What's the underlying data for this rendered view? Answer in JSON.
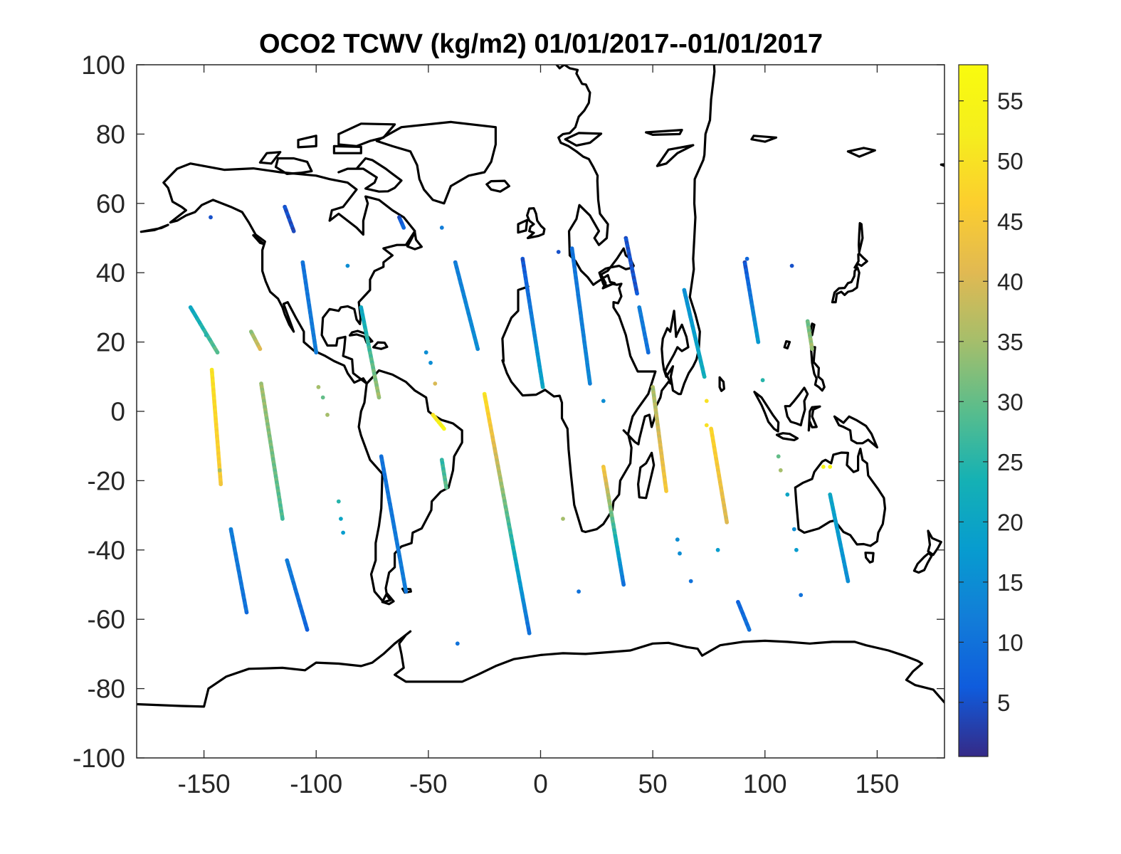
{
  "chart_data": {
    "type": "scatter",
    "title": "OCO2 TCWV (kg/m2) 01/01/2017--01/01/2017",
    "xlabel": "",
    "ylabel": "",
    "xlim": [
      -180,
      180
    ],
    "ylim": [
      -100,
      100
    ],
    "x_ticks": [
      -150,
      -100,
      -50,
      0,
      50,
      100,
      150
    ],
    "y_ticks": [
      100,
      80,
      60,
      40,
      20,
      0,
      -20,
      -40,
      -60,
      -80,
      -100
    ],
    "grid": false,
    "background_map": "world coastlines",
    "colorbar": {
      "location": "right",
      "colormap": "parula",
      "clim": [
        0.5,
        58
      ],
      "ticks": [
        55,
        50,
        45,
        40,
        35,
        30,
        25,
        20,
        15,
        10,
        5
      ]
    },
    "tracks": [
      {
        "x": [
          -156,
          -144
        ],
        "y": [
          30,
          17
        ],
        "values": [
          20,
          30
        ]
      },
      {
        "x": [
          -146.5,
          -142.5
        ],
        "y": [
          12,
          -21
        ],
        "values": [
          50,
          45
        ]
      },
      {
        "x": [
          -138,
          -131
        ],
        "y": [
          -34,
          -58
        ],
        "values": [
          12,
          10
        ]
      },
      {
        "x": [
          -129,
          -125
        ],
        "y": [
          23,
          18
        ],
        "values": [
          33,
          40
        ]
      },
      {
        "x": [
          -124.5,
          -115
        ],
        "y": [
          8,
          -31
        ],
        "values": [
          35,
          28
        ]
      },
      {
        "x": [
          -113,
          -104
        ],
        "y": [
          -43,
          -63
        ],
        "values": [
          12,
          8
        ]
      },
      {
        "x": [
          -114,
          -110
        ],
        "y": [
          59,
          52
        ],
        "values": [
          5,
          4
        ]
      },
      {
        "x": [
          -106,
          -100
        ],
        "y": [
          43,
          17
        ],
        "values": [
          10,
          12
        ]
      },
      {
        "x": [
          -80,
          -72
        ],
        "y": [
          30,
          4
        ],
        "values": [
          20,
          35
        ]
      },
      {
        "x": [
          -71,
          -60
        ],
        "y": [
          -13,
          -52
        ],
        "values": [
          10,
          12
        ]
      },
      {
        "x": [
          -63,
          -61
        ],
        "y": [
          56,
          53
        ],
        "values": [
          5,
          8
        ]
      },
      {
        "x": [
          -38,
          -28
        ],
        "y": [
          43,
          18
        ],
        "values": [
          12,
          15
        ]
      },
      {
        "x": [
          -48,
          -43
        ],
        "y": [
          -1,
          -5
        ],
        "values": [
          50,
          55
        ]
      },
      {
        "x": [
          -44,
          -42
        ],
        "y": [
          -14,
          -22
        ],
        "values": [
          25,
          30
        ]
      },
      {
        "x": [
          -25,
          -5
        ],
        "y": [
          5,
          -64
        ],
        "values": [
          50,
          9
        ]
      },
      {
        "x": [
          -8,
          1
        ],
        "y": [
          44,
          7
        ],
        "values": [
          5,
          20
        ]
      },
      {
        "x": [
          14,
          22
        ],
        "y": [
          47,
          8
        ],
        "values": [
          10,
          14
        ]
      },
      {
        "x": [
          28,
          37
        ],
        "y": [
          -16,
          -50
        ],
        "values": [
          45,
          10
        ]
      },
      {
        "x": [
          38,
          43
        ],
        "y": [
          50,
          34
        ],
        "values": [
          5,
          5
        ]
      },
      {
        "x": [
          44,
          48
        ],
        "y": [
          30,
          17
        ],
        "values": [
          12,
          10
        ]
      },
      {
        "x": [
          50,
          56
        ],
        "y": [
          7,
          -23
        ],
        "values": [
          35,
          45
        ]
      },
      {
        "x": [
          64,
          73
        ],
        "y": [
          35,
          10
        ],
        "values": [
          15,
          22
        ]
      },
      {
        "x": [
          76,
          83
        ],
        "y": [
          -5,
          -32
        ],
        "values": [
          48,
          40
        ]
      },
      {
        "x": [
          88,
          93
        ],
        "y": [
          -55,
          -63
        ],
        "values": [
          8,
          10
        ]
      },
      {
        "x": [
          91,
          97
        ],
        "y": [
          43,
          20
        ],
        "values": [
          5,
          18
        ]
      },
      {
        "x": [
          119,
          121
        ],
        "y": [
          26,
          18
        ],
        "values": [
          30,
          35
        ]
      },
      {
        "x": [
          129,
          137
        ],
        "y": [
          -24,
          -49
        ],
        "values": [
          20,
          15
        ]
      }
    ],
    "points": [
      {
        "x": -147,
        "y": 56,
        "value": 5
      },
      {
        "x": -149,
        "y": 22,
        "value": 25
      },
      {
        "x": -143,
        "y": -17,
        "value": 35
      },
      {
        "x": -99,
        "y": 7,
        "value": 35
      },
      {
        "x": -97,
        "y": 4,
        "value": 30
      },
      {
        "x": -95,
        "y": -1,
        "value": 35
      },
      {
        "x": -90,
        "y": -26,
        "value": 25
      },
      {
        "x": -89,
        "y": -31,
        "value": 20
      },
      {
        "x": -88,
        "y": -35,
        "value": 18
      },
      {
        "x": -86,
        "y": 42,
        "value": 15
      },
      {
        "x": -51,
        "y": 17,
        "value": 15
      },
      {
        "x": -49,
        "y": 14,
        "value": 15
      },
      {
        "x": -47,
        "y": 8,
        "value": 40
      },
      {
        "x": -44,
        "y": 53,
        "value": 12
      },
      {
        "x": -37,
        "y": -67,
        "value": 10
      },
      {
        "x": 8,
        "y": 46,
        "value": 5
      },
      {
        "x": 10,
        "y": -31,
        "value": 35
      },
      {
        "x": 17,
        "y": -52,
        "value": 10
      },
      {
        "x": 28,
        "y": 3,
        "value": 15
      },
      {
        "x": 61,
        "y": -37,
        "value": 15
      },
      {
        "x": 62,
        "y": -41,
        "value": 15
      },
      {
        "x": 67,
        "y": -49,
        "value": 10
      },
      {
        "x": 74,
        "y": 3,
        "value": 50
      },
      {
        "x": 74,
        "y": -4,
        "value": 50
      },
      {
        "x": 79,
        "y": -40,
        "value": 18
      },
      {
        "x": 92,
        "y": 44,
        "value": 8
      },
      {
        "x": 99,
        "y": 9,
        "value": 25
      },
      {
        "x": 106,
        "y": -13,
        "value": 30
      },
      {
        "x": 107,
        "y": -17,
        "value": 35
      },
      {
        "x": 110,
        "y": -24,
        "value": 20
      },
      {
        "x": 112,
        "y": 42,
        "value": 5
      },
      {
        "x": 113,
        "y": -34,
        "value": 15
      },
      {
        "x": 114,
        "y": -40,
        "value": 18
      },
      {
        "x": 116,
        "y": -53,
        "value": 10
      },
      {
        "x": 126,
        "y": -16,
        "value": 55
      },
      {
        "x": 129,
        "y": -16,
        "value": 55
      }
    ]
  }
}
